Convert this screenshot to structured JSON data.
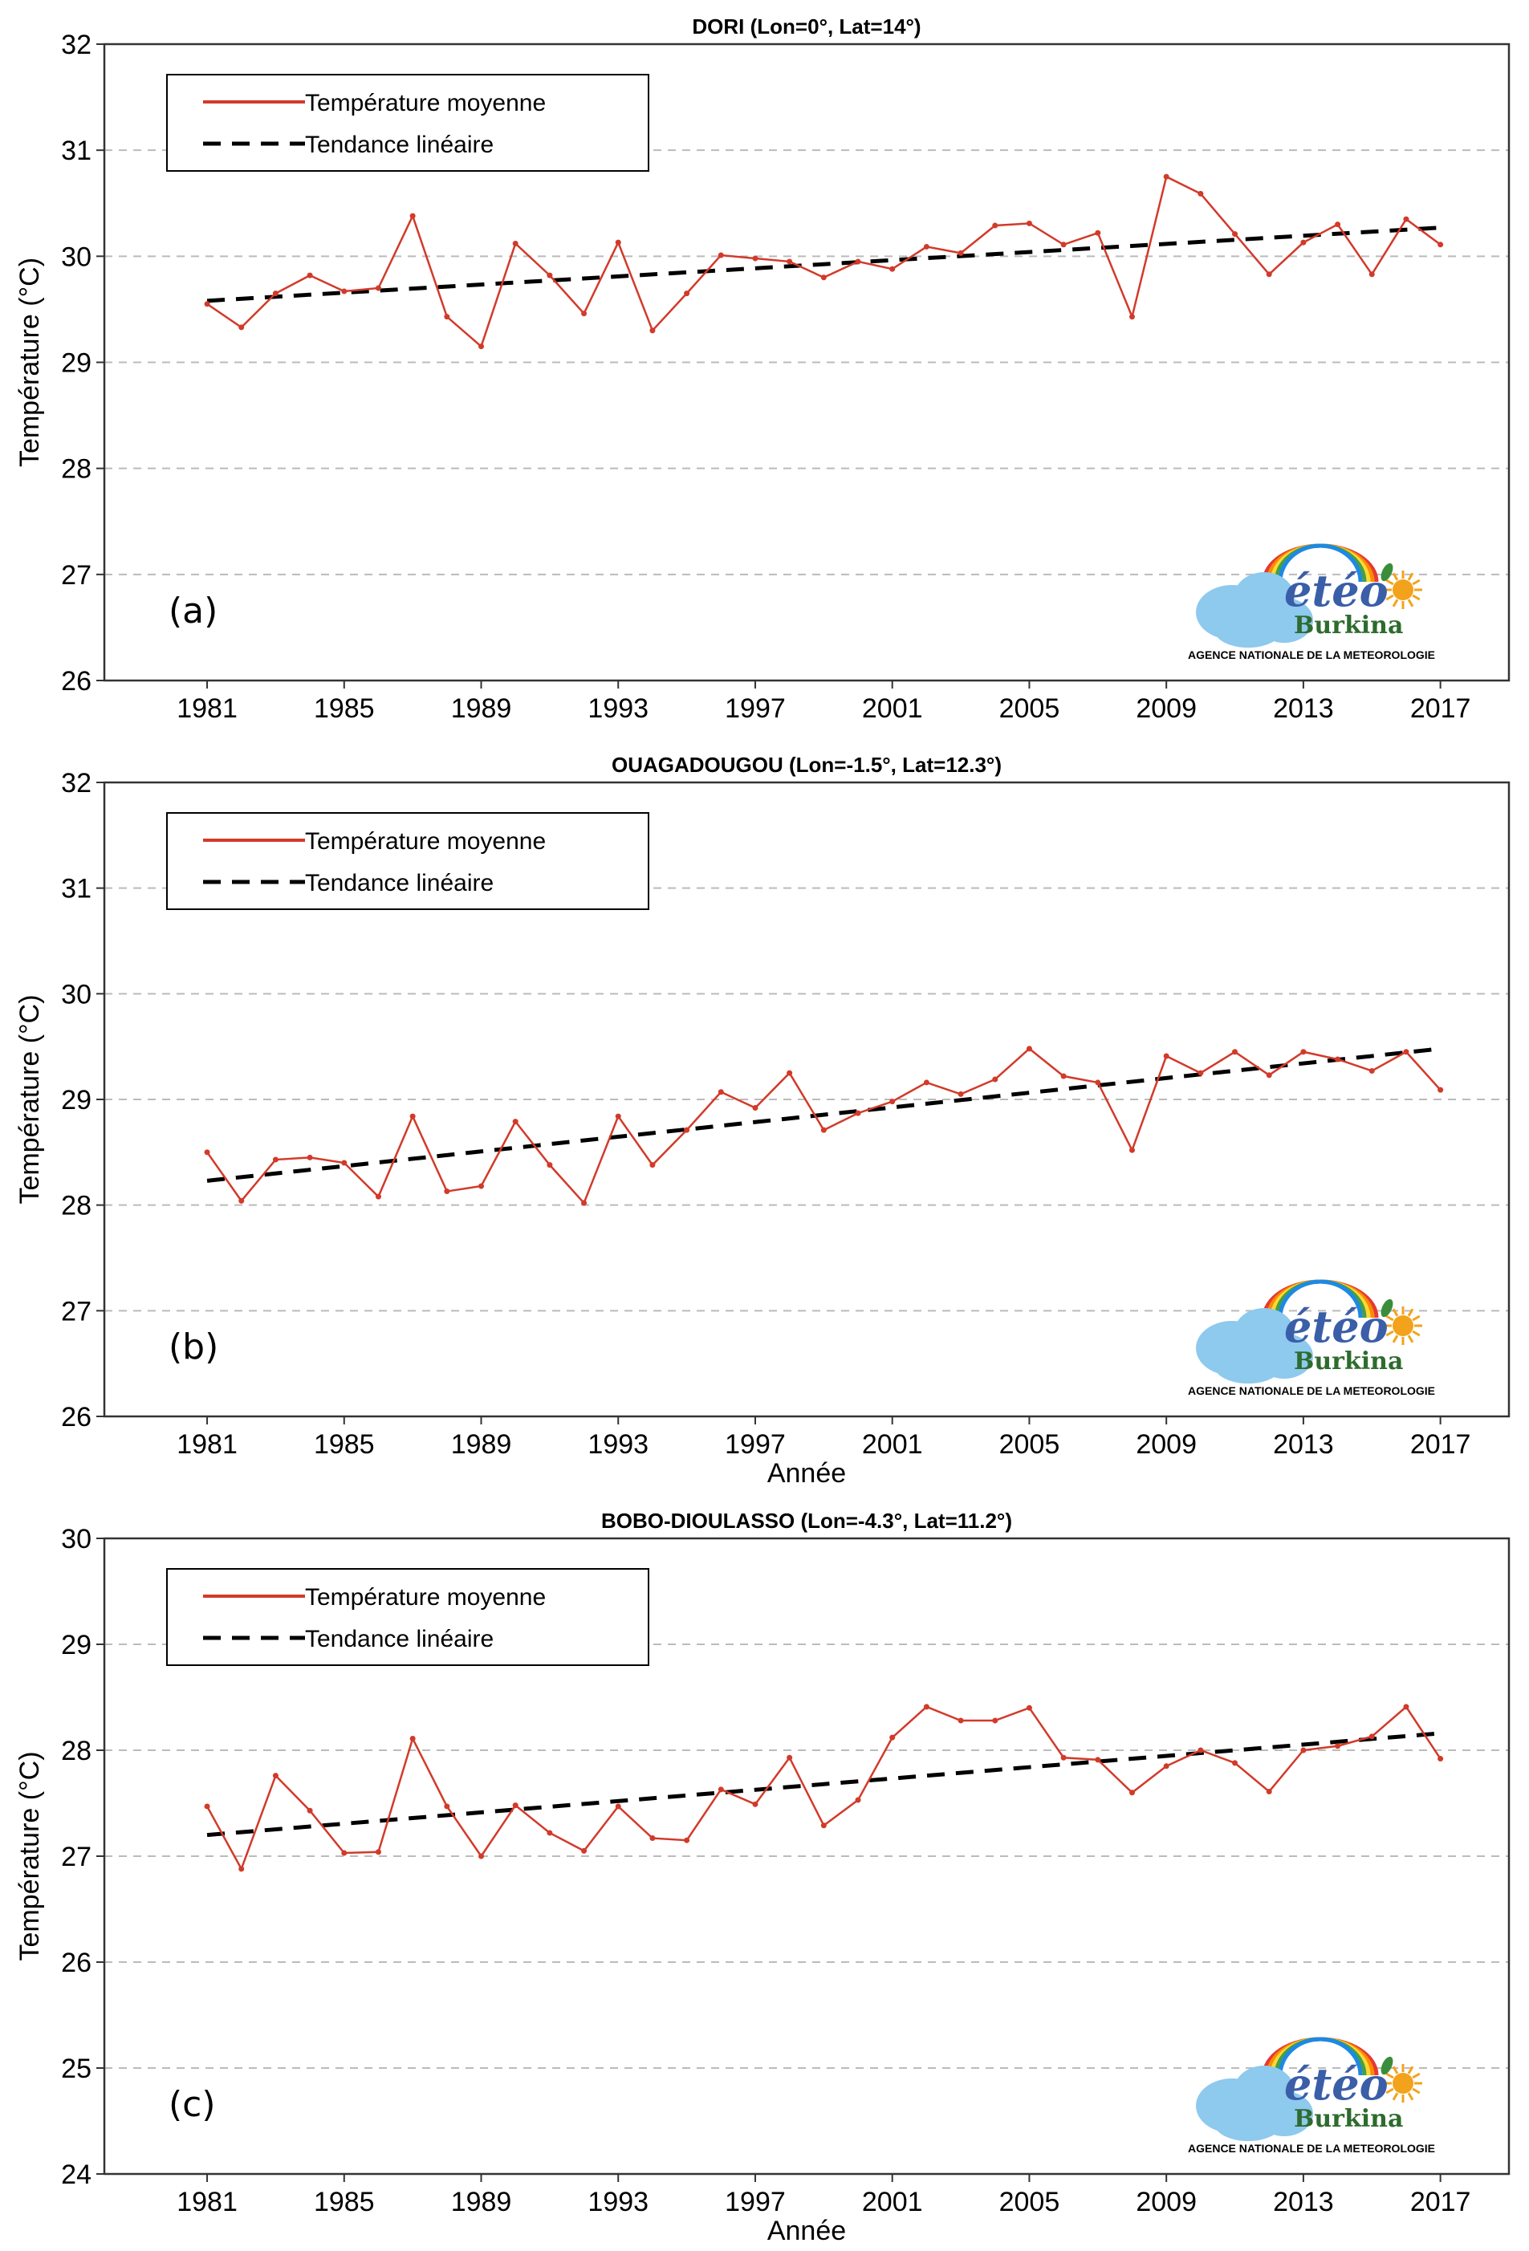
{
  "colors": {
    "series": "#d23a2a",
    "trend": "#000000",
    "grid": "#bbbbbb",
    "logo_blue": "#3a5ea8",
    "logo_cloud": "#8ec9ee",
    "logo_green": "#2e6b2e",
    "logo_sun": "#f2a31b"
  },
  "legend": {
    "series": "Température moyenne",
    "trend": "Tendance linéaire"
  },
  "logo": {
    "word": "étéo",
    "sub": "Burkina",
    "agency": "AGENCE NATIONALE DE LA METEOROLOGIE"
  },
  "chart_data": [
    {
      "type": "line",
      "panel_label": "(a)",
      "title": "DORI (Lon=0°, Lat=14°)",
      "xlabel": "",
      "ylabel": "Température (°C)",
      "xlim": [
        1978,
        2019
      ],
      "ylim": [
        26,
        32
      ],
      "xticks": [
        1981,
        1985,
        1989,
        1993,
        1997,
        2001,
        2005,
        2009,
        2013,
        2017
      ],
      "yticks": [
        26,
        27,
        28,
        29,
        30,
        31,
        32
      ],
      "grid": "horizontal-dashed",
      "legend_position": "top-left",
      "x": [
        1981,
        1982,
        1983,
        1984,
        1985,
        1986,
        1987,
        1988,
        1989,
        1990,
        1991,
        1992,
        1993,
        1994,
        1995,
        1996,
        1997,
        1998,
        1999,
        2000,
        2001,
        2002,
        2003,
        2004,
        2005,
        2006,
        2007,
        2008,
        2009,
        2010,
        2011,
        2012,
        2013,
        2014,
        2015,
        2016,
        2017
      ],
      "series": [
        {
          "name": "Température moyenne",
          "values": [
            29.55,
            29.33,
            29.65,
            29.82,
            29.67,
            29.7,
            30.38,
            29.43,
            29.15,
            30.12,
            29.82,
            29.46,
            30.13,
            29.3,
            29.65,
            30.01,
            29.98,
            29.95,
            29.8,
            29.95,
            29.88,
            30.09,
            30.03,
            30.29,
            30.31,
            30.11,
            30.22,
            29.43,
            30.75,
            30.59,
            30.21,
            29.83,
            30.13,
            30.3,
            29.83,
            30.35,
            30.11
          ]
        },
        {
          "name": "Tendance linéaire",
          "values": [
            29.58,
            30.27
          ],
          "x": [
            1981,
            2017
          ]
        }
      ]
    },
    {
      "type": "line",
      "panel_label": "(b)",
      "title": "OUAGADOUGOU (Lon=-1.5°, Lat=12.3°)",
      "xlabel": "Année",
      "ylabel": "Température (°C)",
      "xlim": [
        1978,
        2019
      ],
      "ylim": [
        26,
        32
      ],
      "xticks": [
        1981,
        1985,
        1989,
        1993,
        1997,
        2001,
        2005,
        2009,
        2013,
        2017
      ],
      "yticks": [
        26,
        27,
        28,
        29,
        30,
        31,
        32
      ],
      "grid": "horizontal-dashed",
      "legend_position": "top-left",
      "x": [
        1981,
        1982,
        1983,
        1984,
        1985,
        1986,
        1987,
        1988,
        1989,
        1990,
        1991,
        1992,
        1993,
        1994,
        1995,
        1996,
        1997,
        1998,
        1999,
        2000,
        2001,
        2002,
        2003,
        2004,
        2005,
        2006,
        2007,
        2008,
        2009,
        2010,
        2011,
        2012,
        2013,
        2014,
        2015,
        2016,
        2017
      ],
      "series": [
        {
          "name": "Température moyenne",
          "values": [
            28.5,
            28.04,
            28.43,
            28.45,
            28.4,
            28.08,
            28.84,
            28.13,
            28.18,
            28.79,
            28.38,
            28.02,
            28.84,
            28.38,
            28.71,
            29.07,
            28.92,
            29.25,
            28.71,
            28.87,
            28.98,
            29.16,
            29.05,
            29.19,
            29.48,
            29.22,
            29.16,
            28.52,
            29.41,
            29.25,
            29.45,
            29.23,
            29.45,
            29.38,
            29.27,
            29.45,
            29.09
          ]
        },
        {
          "name": "Tendance linéaire",
          "values": [
            28.23,
            29.48
          ],
          "x": [
            1981,
            2017
          ]
        }
      ]
    },
    {
      "type": "line",
      "panel_label": "(c)",
      "title": "BOBO-DIOULASSO (Lon=-4.3°, Lat=11.2°)",
      "xlabel": "Année",
      "ylabel": "Température (°C)",
      "xlim": [
        1978,
        2019
      ],
      "ylim": [
        24,
        30
      ],
      "xticks": [
        1981,
        1985,
        1989,
        1993,
        1997,
        2001,
        2005,
        2009,
        2013,
        2017
      ],
      "yticks": [
        24,
        25,
        26,
        27,
        28,
        29,
        30
      ],
      "grid": "horizontal-dashed",
      "legend_position": "top-left",
      "x": [
        1981,
        1982,
        1983,
        1984,
        1985,
        1986,
        1987,
        1988,
        1989,
        1990,
        1991,
        1992,
        1993,
        1994,
        1995,
        1996,
        1997,
        1998,
        1999,
        2000,
        2001,
        2002,
        2003,
        2004,
        2005,
        2006,
        2007,
        2008,
        2009,
        2010,
        2011,
        2012,
        2013,
        2014,
        2015,
        2016,
        2017
      ],
      "series": [
        {
          "name": "Température moyenne",
          "values": [
            27.47,
            26.88,
            27.76,
            27.43,
            27.03,
            27.04,
            28.11,
            27.47,
            27.0,
            27.48,
            27.22,
            27.05,
            27.47,
            27.17,
            27.15,
            27.63,
            27.49,
            27.93,
            27.29,
            27.53,
            28.12,
            28.41,
            28.28,
            28.28,
            28.4,
            27.93,
            27.91,
            27.6,
            27.85,
            28.0,
            27.88,
            27.61,
            28.0,
            28.04,
            28.13,
            28.41,
            27.92
          ]
        },
        {
          "name": "Tendance linéaire",
          "values": [
            27.2,
            28.16
          ],
          "x": [
            1981,
            2017
          ]
        }
      ]
    }
  ]
}
